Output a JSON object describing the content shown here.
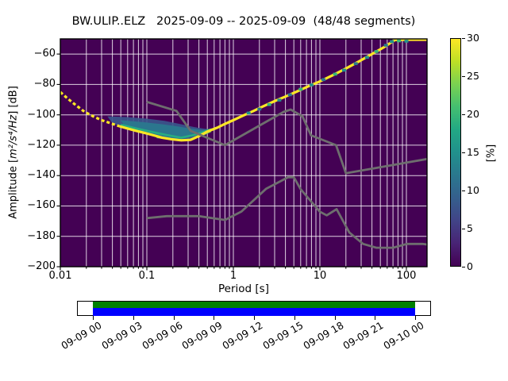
{
  "header": {
    "title": "BW.ULIP..ELZ   2025-09-09 -- 2025-09-09  (48/48 segments)"
  },
  "chart_data": {
    "type": "heatmap",
    "title": "BW.ULIP..ELZ   2025-09-09 -- 2025-09-09  (48/48 segments)",
    "station": "BW.ULIP..ELZ",
    "date_range": "2025-09-09 -- 2025-09-09",
    "segments": "48/48",
    "xlabel": "Period [s]",
    "ylabel_parts": {
      "prefix": "Amplitude [",
      "math": "m²/s⁴/Hz",
      "suffix": "] [dB]"
    },
    "xscale": "log",
    "xlim": [
      0.01,
      175
    ],
    "ylim": [
      -200,
      -50
    ],
    "grid": true,
    "xticks": {
      "values": [
        0.01,
        0.1,
        1,
        10,
        100
      ],
      "labels": [
        "0.01",
        "0.1",
        "1",
        "10",
        "100"
      ]
    },
    "yticks": {
      "values": [
        -60,
        -80,
        -100,
        -120,
        -140,
        -160,
        -180,
        -200
      ],
      "labels": [
        "−60",
        "−80",
        "−100",
        "−120",
        "−140",
        "−160",
        "−180",
        "−200"
      ]
    },
    "plot_bg": "#440154",
    "grid_color": "rgba(255,255,255,0.82)",
    "colorbar": {
      "label": "[%]",
      "min": 0,
      "max": 30,
      "ticks": [
        0,
        5,
        10,
        15,
        20,
        25,
        30
      ],
      "colormap": "viridis",
      "stops": [
        "#440154",
        "#482475",
        "#414487",
        "#355f8d",
        "#2a788e",
        "#21918c",
        "#22a884",
        "#44bf70",
        "#7ad151",
        "#bddf26",
        "#fde725"
      ]
    },
    "series": [
      {
        "name": "psd-mode-line",
        "color": "#fde725",
        "width": 3.2,
        "points": [
          [
            0.01,
            -85
          ],
          [
            0.012,
            -89
          ],
          [
            0.015,
            -93.5
          ],
          [
            0.019,
            -98
          ],
          [
            0.024,
            -101
          ],
          [
            0.03,
            -103.5
          ],
          [
            0.038,
            -105.5
          ],
          [
            0.048,
            -107.5
          ],
          [
            0.06,
            -109
          ],
          [
            0.075,
            -110.5
          ],
          [
            0.095,
            -112
          ],
          [
            0.12,
            -113.5
          ],
          [
            0.15,
            -115
          ],
          [
            0.19,
            -116
          ],
          [
            0.25,
            -116.8
          ],
          [
            0.32,
            -116.5
          ],
          [
            0.4,
            -114
          ],
          [
            0.5,
            -111
          ],
          [
            0.65,
            -108.5
          ],
          [
            0.8,
            -106
          ],
          [
            1.0,
            -103.5
          ],
          [
            1.3,
            -100.5
          ],
          [
            1.7,
            -97.5
          ],
          [
            2.2,
            -94.5
          ],
          [
            3.0,
            -91
          ],
          [
            4.0,
            -88
          ],
          [
            5.5,
            -84.5
          ],
          [
            7.5,
            -81
          ],
          [
            10,
            -78
          ],
          [
            14,
            -74
          ],
          [
            20,
            -69.5
          ],
          [
            28,
            -65
          ],
          [
            40,
            -60
          ],
          [
            55,
            -55.5
          ],
          [
            74,
            -50.7
          ],
          [
            100,
            -50.5
          ],
          [
            174,
            -50.5
          ]
        ],
        "dashed_until": 0.048
      },
      {
        "name": "nhnm-line",
        "color": "#6e6e6e",
        "width": 2.8,
        "points": [
          [
            0.1,
            -91.5
          ],
          [
            0.22,
            -97.4
          ],
          [
            0.32,
            -110.5
          ],
          [
            0.8,
            -120.0
          ],
          [
            3.8,
            -98.1
          ],
          [
            4.6,
            -96.5
          ],
          [
            6.3,
            -101.0
          ],
          [
            7.9,
            -113.5
          ],
          [
            15.4,
            -120.0
          ],
          [
            20.0,
            -138.5
          ],
          [
            174,
            -129.1
          ]
        ]
      },
      {
        "name": "nlnm-line",
        "color": "#6e6e6e",
        "width": 2.8,
        "points": [
          [
            0.1,
            -168.0
          ],
          [
            0.17,
            -166.7
          ],
          [
            0.4,
            -166.7
          ],
          [
            0.8,
            -169.2
          ],
          [
            1.24,
            -163.7
          ],
          [
            2.4,
            -148.6
          ],
          [
            4.3,
            -141.1
          ],
          [
            5.0,
            -141.1
          ],
          [
            6.0,
            -149.0
          ],
          [
            10.0,
            -163.8
          ],
          [
            12.0,
            -166.2
          ],
          [
            15.6,
            -162.1
          ],
          [
            21.9,
            -177.5
          ],
          [
            31.6,
            -185.0
          ],
          [
            45.0,
            -187.5
          ],
          [
            70.0,
            -187.5
          ],
          [
            101.0,
            -185.0
          ],
          [
            154.0,
            -185.0
          ],
          [
            174,
            -185.4
          ]
        ]
      }
    ],
    "spread_polygons": [
      {
        "name": "psd-spread-outer",
        "color": "#39568c",
        "opacity": 0.92,
        "points": [
          [
            0.035,
            -101
          ],
          [
            0.06,
            -101.5
          ],
          [
            0.1,
            -102.5
          ],
          [
            0.16,
            -104
          ],
          [
            0.24,
            -106
          ],
          [
            0.35,
            -108
          ],
          [
            0.5,
            -109.5
          ],
          [
            0.68,
            -107.8
          ],
          [
            0.5,
            -111
          ],
          [
            0.4,
            -114
          ],
          [
            0.32,
            -116.5
          ],
          [
            0.25,
            -116.8
          ],
          [
            0.19,
            -116
          ],
          [
            0.15,
            -115
          ],
          [
            0.12,
            -113.5
          ],
          [
            0.095,
            -112
          ],
          [
            0.075,
            -110.5
          ],
          [
            0.06,
            -109
          ],
          [
            0.048,
            -107.5
          ],
          [
            0.04,
            -105.5
          ]
        ]
      },
      {
        "name": "psd-spread-mid",
        "color": "#2a788e",
        "opacity": 0.95,
        "points": [
          [
            0.05,
            -103.5
          ],
          [
            0.09,
            -104.8
          ],
          [
            0.15,
            -106.2
          ],
          [
            0.22,
            -107.5
          ],
          [
            0.32,
            -109
          ],
          [
            0.45,
            -110
          ],
          [
            0.58,
            -108.8
          ],
          [
            0.45,
            -111.5
          ],
          [
            0.35,
            -113.5
          ],
          [
            0.28,
            -115.5
          ],
          [
            0.22,
            -115.8
          ],
          [
            0.16,
            -114.5
          ],
          [
            0.12,
            -112.8
          ],
          [
            0.09,
            -111
          ],
          [
            0.07,
            -109.5
          ],
          [
            0.055,
            -107.5
          ]
        ]
      }
    ],
    "spread_lines": [
      {
        "name": "psd-spread-teal",
        "color": "#27ad81",
        "width": 2.6,
        "points": [
          [
            0.05,
            -106.5
          ],
          [
            0.08,
            -109.3
          ],
          [
            0.12,
            -111.5
          ],
          [
            0.17,
            -113.3
          ],
          [
            0.25,
            -115
          ],
          [
            0.35,
            -113.3
          ],
          [
            0.45,
            -111.3
          ],
          [
            0.55,
            -109.6
          ]
        ]
      },
      {
        "name": "psd-spread-green",
        "color": "#5ec962",
        "width": 2,
        "points": [
          [
            0.13,
            -114.8
          ],
          [
            0.2,
            -116.2
          ],
          [
            0.3,
            -116.6
          ],
          [
            0.42,
            -113.8
          ],
          [
            0.55,
            -110.9
          ]
        ]
      }
    ],
    "speckles": [
      [
        1.5,
        -98.8,
        "#21918c"
      ],
      [
        2.0,
        -96.2,
        "#2a788e"
      ],
      [
        2.6,
        -93.2,
        "#35b779"
      ],
      [
        3.4,
        -90.3,
        "#21918c"
      ],
      [
        4.5,
        -86.8,
        "#2a788e"
      ],
      [
        6.0,
        -83.2,
        "#35b779"
      ],
      [
        8.0,
        -80.3,
        "#21918c"
      ],
      [
        11,
        -76.8,
        "#2a788e"
      ],
      [
        15,
        -73.2,
        "#35b779"
      ],
      [
        19,
        -70.6,
        "#21918c"
      ],
      [
        26,
        -66.3,
        "#2a788e"
      ],
      [
        35,
        -62.2,
        "#21918c"
      ],
      [
        45,
        -58.3,
        "#35b779"
      ],
      [
        58,
        -54.2,
        "#2a788e"
      ],
      [
        68,
        -51.8,
        "#21918c"
      ],
      [
        82,
        -51.3,
        "#35b779"
      ],
      [
        100,
        -51.5,
        "#21918c"
      ]
    ]
  },
  "timeline": {
    "labels": [
      "09-09 00",
      "09-09 03",
      "09-09 06",
      "09-09 09",
      "09-09 12",
      "09-09 15",
      "09-09 18",
      "09-09 21",
      "09-10 00"
    ],
    "bar_top_color": "#008000",
    "bar_bottom_color": "#0000ff"
  }
}
